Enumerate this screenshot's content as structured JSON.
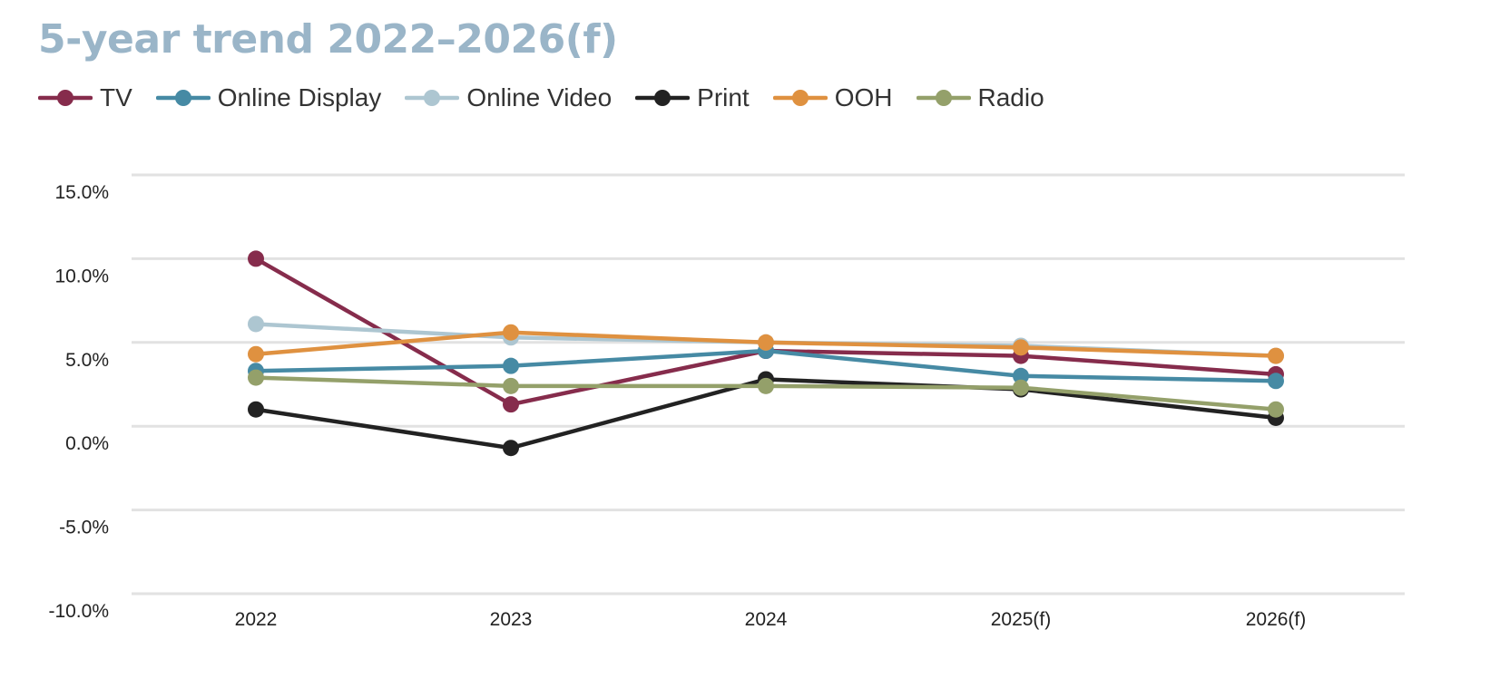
{
  "title": "5-year trend 2022–2026(f)",
  "chart_data": {
    "type": "line",
    "title": "5-year trend 2022–2026(f)",
    "categories": [
      "2022",
      "2023",
      "2024",
      "2025(f)",
      "2026(f)"
    ],
    "ylim": [
      -10,
      15
    ],
    "yticks": [
      15,
      10,
      5,
      0,
      -5,
      -10
    ],
    "ytick_labels": [
      "15.0%",
      "10.0%",
      "5.0%",
      "0.0%",
      "-5.0%",
      "-10.0%"
    ],
    "xlabel": "",
    "ylabel": "",
    "grid": true,
    "legend_position": "top-left",
    "series": [
      {
        "name": "TV",
        "color": "#862c4c",
        "values": [
          10.0,
          1.3,
          4.5,
          4.2,
          3.1
        ]
      },
      {
        "name": "Online Display",
        "color": "#468aa4",
        "values": [
          3.3,
          3.6,
          4.5,
          3.0,
          2.7
        ]
      },
      {
        "name": "Online Video",
        "color": "#adc6d1",
        "values": [
          6.1,
          5.3,
          5.0,
          4.8,
          4.2
        ]
      },
      {
        "name": "Print",
        "color": "#222222",
        "values": [
          1.0,
          -1.3,
          2.8,
          2.2,
          0.5
        ]
      },
      {
        "name": "OOH",
        "color": "#df9140",
        "values": [
          4.3,
          5.6,
          5.0,
          4.7,
          4.2
        ]
      },
      {
        "name": "Radio",
        "color": "#94a06a",
        "values": [
          2.9,
          2.4,
          2.4,
          2.3,
          1.0
        ]
      }
    ]
  }
}
